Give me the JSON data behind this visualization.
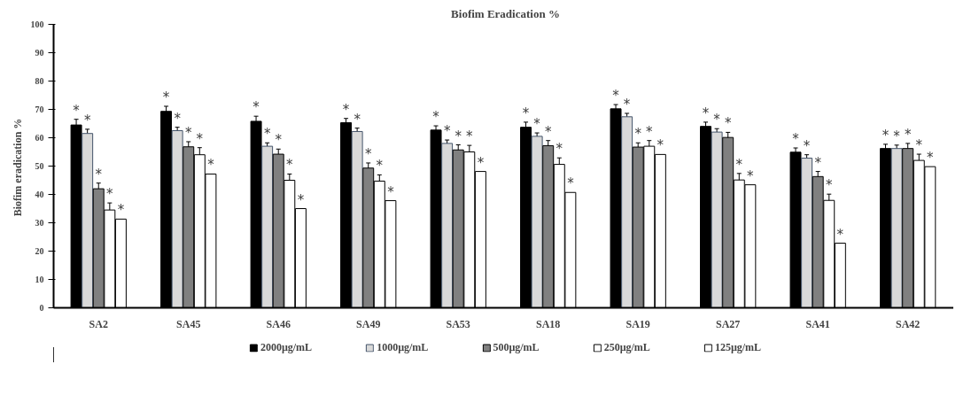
{
  "chart_data": {
    "type": "bar",
    "title": "Biofim Eradication %",
    "ylabel": "Biofim eradication  %",
    "categories": [
      "SA2",
      "SA45",
      "SA46",
      "SA49",
      "SA53",
      "SA18",
      "SA19",
      "SA27",
      "SA41",
      "SA42"
    ],
    "series": [
      {
        "name": "2000µg/mL",
        "color": "#000000",
        "values": [
          64.5,
          69.3,
          65.8,
          65.3,
          62.7,
          63.7,
          70.2,
          64.0,
          54.9,
          56.2
        ],
        "errors": [
          2,
          1.8,
          1.8,
          1.5,
          1.5,
          1.8,
          1.5,
          1.5,
          1.5,
          1.5
        ],
        "value_labels": [
          "*",
          "*",
          "*",
          "*",
          "*",
          "*",
          "*",
          "*",
          "*",
          "*"
        ]
      },
      {
        "name": "1000µg/mL",
        "color": "#d9d9d9",
        "values": [
          61.5,
          62.5,
          57.0,
          62.2,
          58.0,
          60.5,
          67.4,
          62.0,
          52.8,
          56.2
        ],
        "errors": [
          1.5,
          1.2,
          1.2,
          1.2,
          1.2,
          1.2,
          1.2,
          1.2,
          1.2,
          1.2
        ],
        "value_labels": [
          "*",
          "*",
          "*",
          "*",
          "*",
          "*",
          "*",
          "*",
          "*",
          "*"
        ]
      },
      {
        "name": "500µg/mL",
        "color": "#808080",
        "values": [
          42.0,
          56.8,
          54.2,
          49.3,
          55.7,
          57.2,
          56.7,
          60.1,
          46.3,
          56.2
        ],
        "errors": [
          2,
          1.8,
          1.8,
          1.8,
          1.8,
          1.8,
          1.5,
          1.8,
          1.8,
          1.8
        ],
        "value_labels": [
          "*",
          "*",
          "*",
          "*",
          "*",
          "*",
          "*",
          "*",
          "*",
          "*"
        ]
      },
      {
        "name": "250µg/mL",
        "color": "#ffffff",
        "values": [
          34.5,
          54.0,
          45.0,
          44.7,
          55.0,
          50.6,
          57.0,
          45.1,
          37.9,
          52.0
        ],
        "errors": [
          2.5,
          2.5,
          2.2,
          2.2,
          2.3,
          2.3,
          2,
          2.3,
          2.2,
          2.2
        ],
        "value_labels": [
          "*",
          "*",
          "*",
          "*",
          "*",
          "*",
          "*",
          "*",
          "*",
          "*"
        ]
      },
      {
        "name": "125µg/mL",
        "color": "#ffffff",
        "values": [
          31.3,
          47.2,
          35.0,
          37.8,
          48.1,
          40.7,
          54.1,
          43.4,
          22.8,
          49.8
        ],
        "value_labels": [
          "*",
          "*",
          "*",
          "*",
          "*",
          "*",
          "*",
          "*",
          "*",
          "*"
        ]
      }
    ],
    "ylim": [
      0,
      100
    ],
    "yticks": [
      0,
      10,
      20,
      30,
      40,
      50,
      60,
      70,
      80,
      90,
      100
    ],
    "grid": false,
    "legend": "bottom"
  }
}
